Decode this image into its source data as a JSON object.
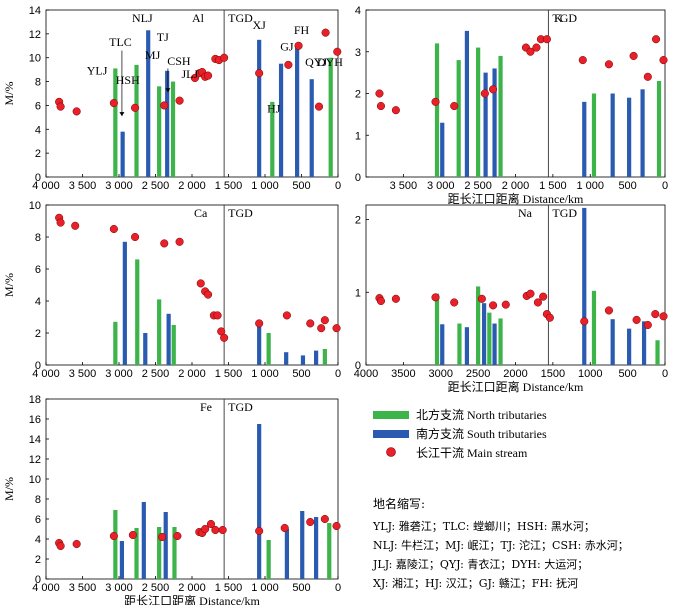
{
  "chart_data": [
    {
      "type": "bar",
      "id": "Al",
      "title": "Al",
      "ylabel": "M/%",
      "xlabel": "",
      "xlim": [
        4000,
        0
      ],
      "ylim": [
        0,
        14
      ],
      "xticks": [
        "4 000",
        "3 500",
        "3 000",
        "2 500",
        "2 000",
        "1 500",
        "1 000",
        "500",
        "0"
      ],
      "yticks": [
        "0",
        "2",
        "4",
        "6",
        "8",
        "10",
        "12",
        "14"
      ],
      "tgd_label": "TGD",
      "tgd_x": 1560,
      "north": [
        [
          3050,
          9.1
        ],
        [
          2760,
          9.4
        ],
        [
          2450,
          7.6
        ],
        [
          2260,
          8.0
        ],
        [
          900,
          6.3
        ],
        [
          100,
          10.0
        ]
      ],
      "south": [
        [
          2950,
          3.8
        ],
        [
          2600,
          12.3
        ],
        [
          2340,
          8.9
        ],
        [
          1080,
          11.5
        ],
        [
          780,
          9.5
        ],
        [
          560,
          11.2
        ],
        [
          360,
          8.2
        ]
      ],
      "main": [
        [
          3820,
          6.3
        ],
        [
          3800,
          5.9
        ],
        [
          3580,
          5.5
        ],
        [
          3070,
          6.2
        ],
        [
          2780,
          5.8
        ],
        [
          2380,
          6.0
        ],
        [
          2170,
          6.4
        ],
        [
          1960,
          8.3
        ],
        [
          1900,
          8.7
        ],
        [
          1860,
          8.8
        ],
        [
          1820,
          8.4
        ],
        [
          1780,
          8.5
        ],
        [
          1680,
          9.9
        ],
        [
          1630,
          9.8
        ],
        [
          1560,
          10.0
        ],
        [
          1080,
          8.7
        ],
        [
          680,
          9.4
        ],
        [
          540,
          11.0
        ],
        [
          260,
          5.9
        ],
        [
          170,
          12.1
        ],
        [
          10,
          10.5
        ]
      ],
      "station_labels": [
        {
          "text": "YLJ",
          "x": 3300,
          "y": 8.6
        },
        {
          "text": "TLC",
          "x": 2980,
          "y": 11.0
        },
        {
          "text": "HSH",
          "x": 2880,
          "y": 7.8
        },
        {
          "text": "NLJ",
          "x": 2680,
          "y": 13.0
        },
        {
          "text": "MJ",
          "x": 2540,
          "y": 9.9
        },
        {
          "text": "TJ",
          "x": 2400,
          "y": 11.4
        },
        {
          "text": "CSH",
          "x": 2180,
          "y": 9.4
        },
        {
          "text": "JLJ",
          "x": 2030,
          "y": 8.3
        },
        {
          "text": "XJ",
          "x": 1080,
          "y": 12.4
        },
        {
          "text": "HJ",
          "x": 880,
          "y": 5.4
        },
        {
          "text": "GJ",
          "x": 700,
          "y": 10.6
        },
        {
          "text": "FH",
          "x": 500,
          "y": 12.0
        },
        {
          "text": "QYJ",
          "x": 300,
          "y": 9.3
        },
        {
          "text": "DYH",
          "x": 110,
          "y": 9.3
        }
      ]
    },
    {
      "type": "bar",
      "id": "K",
      "title": "K",
      "ylabel": "",
      "xlabel": "距长江口距离 Distance/km",
      "xlim": [
        4000,
        0
      ],
      "ylim": [
        0,
        4
      ],
      "xticks": [
        "3 500",
        "3 000",
        "2 500",
        "2 000",
        "1 500",
        "1 000",
        "500",
        "0"
      ],
      "yticks": [
        "0",
        "1",
        "2",
        "3",
        "4"
      ],
      "tgd_label": "TGD",
      "tgd_x": 1560,
      "north": [
        [
          3050,
          3.2
        ],
        [
          2760,
          2.8
        ],
        [
          2500,
          3.1
        ],
        [
          2200,
          2.9
        ],
        [
          950,
          2.0
        ],
        [
          80,
          2.3
        ]
      ],
      "south": [
        [
          2980,
          1.3
        ],
        [
          2650,
          3.5
        ],
        [
          2400,
          2.5
        ],
        [
          2280,
          2.6
        ],
        [
          1080,
          1.8
        ],
        [
          700,
          2.0
        ],
        [
          480,
          1.9
        ],
        [
          300,
          2.1
        ]
      ],
      "main": [
        [
          3820,
          2.0
        ],
        [
          3800,
          1.7
        ],
        [
          3600,
          1.6
        ],
        [
          3070,
          1.8
        ],
        [
          2820,
          1.7
        ],
        [
          2410,
          2.0
        ],
        [
          2300,
          2.1
        ],
        [
          1860,
          3.1
        ],
        [
          1800,
          3.0
        ],
        [
          1720,
          3.1
        ],
        [
          1660,
          3.3
        ],
        [
          1580,
          3.3
        ],
        [
          1100,
          2.8
        ],
        [
          750,
          2.7
        ],
        [
          420,
          2.9
        ],
        [
          230,
          2.4
        ],
        [
          120,
          3.3
        ],
        [
          20,
          2.8
        ]
      ],
      "station_labels": []
    },
    {
      "type": "bar",
      "id": "Ca",
      "title": "Ca",
      "ylabel": "M/%",
      "xlabel": "",
      "xlim": [
        4000,
        0
      ],
      "ylim": [
        0,
        10
      ],
      "xticks": [
        "4 000",
        "3 500",
        "3 000",
        "2 500",
        "2 000",
        "1 500",
        "1 000",
        "500",
        "0"
      ],
      "yticks": [
        "0",
        "2",
        "4",
        "6",
        "8",
        "10"
      ],
      "tgd_label": "TGD",
      "tgd_x": 1560,
      "north": [
        [
          3050,
          2.7
        ],
        [
          2750,
          6.6
        ],
        [
          2450,
          4.1
        ],
        [
          2250,
          2.5
        ],
        [
          950,
          2.0
        ],
        [
          180,
          1.0
        ]
      ],
      "south": [
        [
          2920,
          7.7
        ],
        [
          2640,
          2.0
        ],
        [
          2320,
          3.2
        ],
        [
          1080,
          2.7
        ],
        [
          710,
          0.8
        ],
        [
          480,
          0.6
        ],
        [
          300,
          0.9
        ]
      ],
      "main": [
        [
          3820,
          9.2
        ],
        [
          3800,
          8.9
        ],
        [
          3600,
          8.7
        ],
        [
          3070,
          8.5
        ],
        [
          2780,
          8.0
        ],
        [
          2380,
          7.6
        ],
        [
          2170,
          7.7
        ],
        [
          1880,
          5.1
        ],
        [
          1820,
          4.6
        ],
        [
          1780,
          4.4
        ],
        [
          1700,
          3.1
        ],
        [
          1650,
          3.1
        ],
        [
          1600,
          2.1
        ],
        [
          1560,
          1.7
        ],
        [
          1080,
          2.6
        ],
        [
          700,
          3.1
        ],
        [
          380,
          2.6
        ],
        [
          230,
          2.3
        ],
        [
          180,
          2.8
        ],
        [
          20,
          2.3
        ]
      ],
      "station_labels": []
    },
    {
      "type": "bar",
      "id": "Na",
      "title": "Na",
      "ylabel": "",
      "xlabel": "距长江口距离 Distance/km",
      "xlim": [
        4000,
        0
      ],
      "ylim": [
        0,
        2.2
      ],
      "xticks": [
        "4000",
        "3500",
        "3000",
        "2500",
        "2000",
        "1500",
        "1000",
        "500",
        "0"
      ],
      "yticks": [
        "0",
        "1",
        "2"
      ],
      "tgd_label": "TGD",
      "tgd_x": 1560,
      "north": [
        [
          3050,
          0.98
        ],
        [
          2750,
          0.57
        ],
        [
          2500,
          1.08
        ],
        [
          2350,
          0.72
        ],
        [
          2200,
          0.64
        ],
        [
          950,
          1.02
        ],
        [
          100,
          0.34
        ]
      ],
      "south": [
        [
          2980,
          0.56
        ],
        [
          2650,
          0.52
        ],
        [
          2420,
          0.85
        ],
        [
          2280,
          0.57
        ],
        [
          1080,
          2.16
        ],
        [
          700,
          0.63
        ],
        [
          480,
          0.5
        ],
        [
          280,
          0.6
        ]
      ],
      "main": [
        [
          3820,
          0.92
        ],
        [
          3800,
          0.88
        ],
        [
          3600,
          0.91
        ],
        [
          3070,
          0.93
        ],
        [
          2820,
          0.86
        ],
        [
          2450,
          0.91
        ],
        [
          2300,
          0.82
        ],
        [
          2130,
          0.83
        ],
        [
          1850,
          0.95
        ],
        [
          1800,
          0.98
        ],
        [
          1700,
          0.86
        ],
        [
          1630,
          0.94
        ],
        [
          1580,
          0.7
        ],
        [
          1540,
          0.65
        ],
        [
          1080,
          0.6
        ],
        [
          750,
          0.75
        ],
        [
          380,
          0.62
        ],
        [
          230,
          0.55
        ],
        [
          130,
          0.7
        ],
        [
          20,
          0.67
        ]
      ],
      "station_labels": []
    },
    {
      "type": "bar",
      "id": "Fe",
      "title": "Fe",
      "ylabel": "M/%",
      "xlabel": "距长江口距离 Distance/km",
      "xlim": [
        4000,
        0
      ],
      "ylim": [
        0,
        18
      ],
      "xticks": [
        "4 000",
        "3 500",
        "3 000",
        "2 500",
        "2 000",
        "1 500",
        "1 000",
        "500",
        "0"
      ],
      "yticks": [
        "0",
        "2",
        "4",
        "6",
        "8",
        "10",
        "12",
        "14",
        "16",
        "18"
      ],
      "tgd_label": "TGD",
      "tgd_x": 1560,
      "north": [
        [
          3050,
          6.9
        ],
        [
          2760,
          5.1
        ],
        [
          2450,
          5.2
        ],
        [
          2240,
          5.2
        ],
        [
          950,
          3.9
        ],
        [
          120,
          5.6
        ]
      ],
      "south": [
        [
          2960,
          3.8
        ],
        [
          2660,
          7.7
        ],
        [
          2360,
          6.7
        ],
        [
          1080,
          15.5
        ],
        [
          700,
          5.0
        ],
        [
          490,
          6.8
        ],
        [
          300,
          6.2
        ]
      ],
      "main": [
        [
          3820,
          3.6
        ],
        [
          3800,
          3.3
        ],
        [
          3580,
          3.5
        ],
        [
          3070,
          4.3
        ],
        [
          2810,
          4.4
        ],
        [
          2410,
          4.2
        ],
        [
          2200,
          4.3
        ],
        [
          1900,
          4.7
        ],
        [
          1860,
          4.6
        ],
        [
          1820,
          5.0
        ],
        [
          1740,
          5.5
        ],
        [
          1680,
          4.9
        ],
        [
          1580,
          4.9
        ],
        [
          1080,
          4.8
        ],
        [
          730,
          5.1
        ],
        [
          380,
          5.7
        ],
        [
          180,
          6.0
        ],
        [
          20,
          5.3
        ]
      ],
      "station_labels": []
    }
  ],
  "legend": {
    "north": "北方支流 North tributaries",
    "south": "南方支流 South tributaries",
    "main": "长江干流 Main stream"
  },
  "colors": {
    "north": "#3cb44a",
    "south": "#2a5bb0",
    "main": "#e8202a"
  },
  "abbreviations": {
    "title": "地名缩写:",
    "lines": [
      "YLJ: 雅砻江；TLC: 螳螂川；HSH: 黑水河；",
      "NLJ: 牛栏江；MJ: 岷江；TJ: 沱江；CSH: 赤水河；",
      "JLJ: 嘉陵江；QYJ: 青衣江；DYH: 大运河；",
      "XJ: 湘江；HJ: 汉江；GJ: 赣江；FH: 抚河"
    ]
  }
}
